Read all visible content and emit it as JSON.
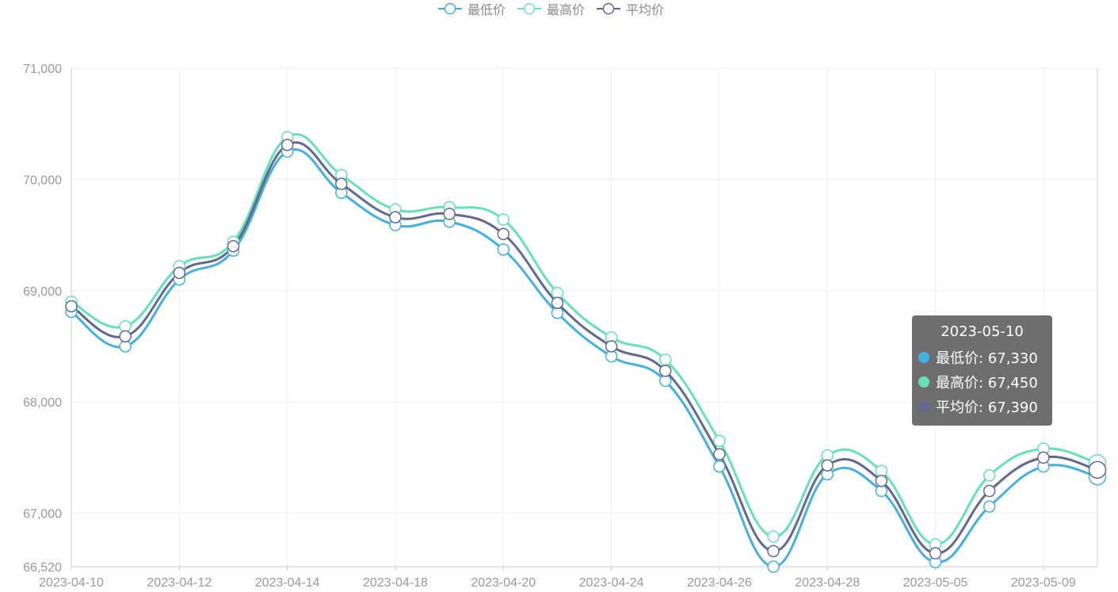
{
  "legend": [
    {
      "name": "最低价",
      "color": "#45b0df"
    },
    {
      "name": "最高价",
      "color": "#66e0b8"
    },
    {
      "name": "平均价",
      "color": "#62688e"
    }
  ],
  "tooltip": {
    "title": "2023-05-10",
    "rows": [
      {
        "label": "最低价: 67,330",
        "color": "#45b0df"
      },
      {
        "label": "最高价: 67,450",
        "color": "#66e0b8"
      },
      {
        "label": "平均价: 67,390",
        "color": "#62688e"
      }
    ]
  },
  "chart_data": {
    "type": "line",
    "smooth": true,
    "x": [
      "2023-04-10",
      "2023-04-11",
      "2023-04-12",
      "2023-04-13",
      "2023-04-14",
      "2023-04-17",
      "2023-04-18",
      "2023-04-19",
      "2023-04-20",
      "2023-04-21",
      "2023-04-24",
      "2023-04-25",
      "2023-04-26",
      "2023-04-27",
      "2023-04-28",
      "2023-05-04",
      "2023-05-05",
      "2023-05-08",
      "2023-05-09",
      "2023-05-10"
    ],
    "x_tick_labels": [
      "2023-04-10",
      "2023-04-12",
      "2023-04-14",
      "2023-04-18",
      "2023-04-20",
      "2023-04-24",
      "2023-04-26",
      "2023-04-28",
      "2023-05-05",
      "2023-05-09"
    ],
    "y_tick_labels": [
      "66,520",
      "67,000",
      "68,000",
      "69,000",
      "70,000",
      "71,000"
    ],
    "ylim": [
      66520,
      71000
    ],
    "y_ticks": [
      66520,
      67000,
      68000,
      69000,
      70000,
      71000
    ],
    "grid": true,
    "legend_position": "top-center",
    "highlighted_x": "2023-05-10",
    "series": [
      {
        "name": "最低价",
        "color": "#45b0df",
        "values": [
          68810,
          68500,
          69100,
          69360,
          70250,
          69880,
          69590,
          69620,
          69370,
          68800,
          68410,
          68190,
          67420,
          66520,
          67350,
          67200,
          66560,
          67060,
          67420,
          67330
        ]
      },
      {
        "name": "最高价",
        "color": "#66e0b8",
        "values": [
          68900,
          68680,
          69220,
          69440,
          70380,
          70040,
          69730,
          69750,
          69640,
          68980,
          68580,
          68380,
          67650,
          66790,
          67520,
          67380,
          66720,
          67340,
          67580,
          67450
        ]
      },
      {
        "name": "平均价",
        "color": "#62688e",
        "values": [
          68860,
          68590,
          69160,
          69400,
          70310,
          69960,
          69660,
          69690,
          69510,
          68890,
          68500,
          68280,
          67530,
          66660,
          67430,
          67290,
          66640,
          67200,
          67500,
          67390
        ]
      }
    ]
  }
}
